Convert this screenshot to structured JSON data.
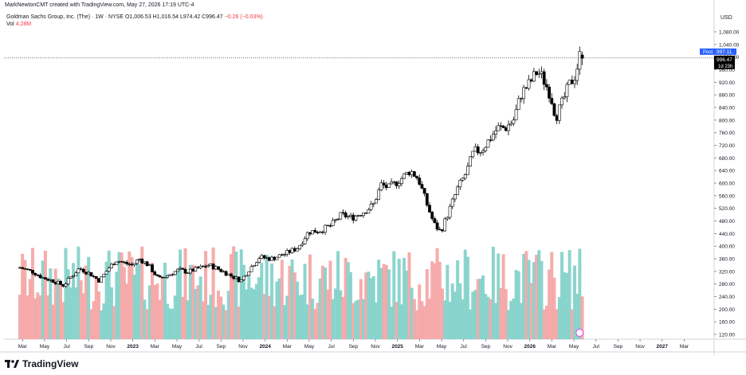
{
  "header": {
    "credit": "MarkNewtonCMT created with TradingView.com, May 27, 2026 17:19 UTC-4",
    "symbol_line_parts": {
      "name": "Goldman Sachs Group, Inc. (The) · 1W · NYSE",
      "open": "O1,006.53",
      "high": "H1,016.54",
      "low": "L974.42",
      "close": "C996.47",
      "change": "−0.26 (−0.03%)"
    },
    "volume_label": "Vol",
    "volume_value": "4.28M",
    "currency": "USD"
  },
  "footer": {
    "brand": "TradingView"
  },
  "colors": {
    "up_candle": "#ffffff",
    "down_candle": "#000000",
    "wick": "#000000",
    "vol_up": "#7fd0c9",
    "vol_down": "#f5a3a3",
    "post_label": "#2962ff"
  },
  "chart_data": {
    "type": "candlestick",
    "title": "Goldman Sachs Group, Inc. (The) · 1W · NYSE",
    "y_axis": {
      "min": 120,
      "max": 1080,
      "ticks": [
        120,
        160,
        200,
        240,
        280,
        320,
        360,
        400,
        440,
        480,
        520,
        560,
        600,
        640,
        680,
        720,
        760,
        800,
        840,
        880,
        920,
        960,
        1000,
        1040,
        1080
      ],
      "position": "right",
      "unit": "USD"
    },
    "x_axis_labels": [
      "Mar",
      "May",
      "Jul",
      "Sep",
      "Nov",
      "2023",
      "Mar",
      "May",
      "Jul",
      "Sep",
      "Nov",
      "2024",
      "Mar",
      "May",
      "Jul",
      "Sep",
      "Nov",
      "2025",
      "Mar",
      "May",
      "Jul",
      "Sep",
      "Nov",
      "2026",
      "Mar",
      "May",
      "Jul",
      "Sep",
      "Nov",
      "2027",
      "Mar"
    ],
    "price_labels": {
      "post_tag": "Post",
      "post_price": "997.11",
      "last_price": "996.47",
      "countdown": "1d 23h"
    },
    "last_price_line": 997,
    "weekly_close_path": [
      [
        2022.15,
        332
      ],
      [
        2022.25,
        318
      ],
      [
        2022.32,
        300
      ],
      [
        2022.4,
        290
      ],
      [
        2022.48,
        275
      ],
      [
        2022.53,
        300
      ],
      [
        2022.6,
        330
      ],
      [
        2022.68,
        312
      ],
      [
        2022.75,
        290
      ],
      [
        2022.82,
        330
      ],
      [
        2022.88,
        355
      ],
      [
        2022.95,
        345
      ],
      [
        2023.0,
        340
      ],
      [
        2023.05,
        360
      ],
      [
        2023.12,
        340
      ],
      [
        2023.2,
        295
      ],
      [
        2023.28,
        310
      ],
      [
        2023.35,
        325
      ],
      [
        2023.42,
        318
      ],
      [
        2023.5,
        330
      ],
      [
        2023.58,
        340
      ],
      [
        2023.66,
        325
      ],
      [
        2023.75,
        305
      ],
      [
        2023.82,
        290
      ],
      [
        2023.88,
        325
      ],
      [
        2023.96,
        365
      ],
      [
        2024.05,
        360
      ],
      [
        2024.15,
        375
      ],
      [
        2024.25,
        395
      ],
      [
        2024.33,
        445
      ],
      [
        2024.42,
        450
      ],
      [
        2024.5,
        465
      ],
      [
        2024.58,
        500
      ],
      [
        2024.66,
        490
      ],
      [
        2024.75,
        510
      ],
      [
        2024.82,
        530
      ],
      [
        2024.88,
        595
      ],
      [
        2024.94,
        585
      ],
      [
        2025.02,
        610
      ],
      [
        2025.1,
        640
      ],
      [
        2025.16,
        615
      ],
      [
        2025.22,
        540
      ],
      [
        2025.28,
        470
      ],
      [
        2025.33,
        445
      ],
      [
        2025.4,
        520
      ],
      [
        2025.46,
        585
      ],
      [
        2025.52,
        630
      ],
      [
        2025.58,
        700
      ],
      [
        2025.64,
        705
      ],
      [
        2025.7,
        740
      ],
      [
        2025.76,
        775
      ],
      [
        2025.82,
        775
      ],
      [
        2025.88,
        800
      ],
      [
        2025.94,
        885
      ],
      [
        2026.0,
        915
      ],
      [
        2026.06,
        955
      ],
      [
        2026.1,
        935
      ],
      [
        2026.16,
        880
      ],
      [
        2026.2,
        810
      ],
      [
        2026.24,
        845
      ],
      [
        2026.3,
        910
      ],
      [
        2026.35,
        945
      ],
      [
        2026.38,
        1005
      ],
      [
        2026.4,
        996.47
      ]
    ],
    "volume": {
      "unit": "shares",
      "last": "4.28M"
    },
    "grid": false,
    "legend_position": "top-left"
  }
}
